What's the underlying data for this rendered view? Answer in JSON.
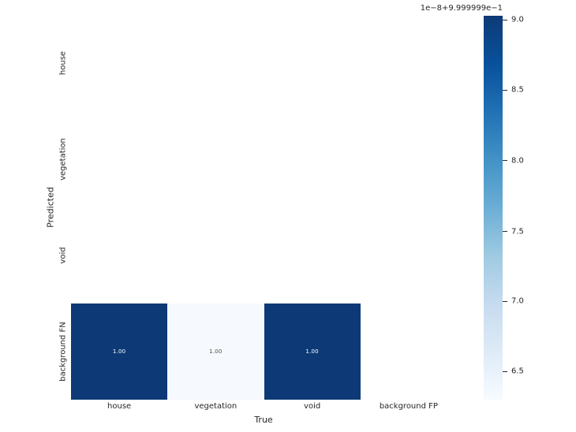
{
  "chart_data": {
    "type": "heatmap",
    "title": "",
    "xlabel": "True",
    "ylabel": "Predicted",
    "x_categories": [
      "house",
      "vegetation",
      "void",
      "background FP"
    ],
    "y_categories": [
      "house",
      "vegetation",
      "void",
      "background FN"
    ],
    "grid": "off",
    "cells": [
      {
        "row": 3,
        "col": 0,
        "value": "1.00",
        "bg": "#0d3a76",
        "fg": "#ffffff"
      },
      {
        "row": 3,
        "col": 1,
        "value": "1.00",
        "bg": "#f6f9fd",
        "fg": "#4d4d4d"
      },
      {
        "row": 3,
        "col": 2,
        "value": "1.00",
        "bg": "#0d3a76",
        "fg": "#ffffff"
      }
    ],
    "empty_cell_color": "#ffffff",
    "colorbar": {
      "position": "right",
      "offset_text": "1e−8+9.999999e−1",
      "ticks": [
        {
          "label": "9.0",
          "pos": 0.01
        },
        {
          "label": "8.5",
          "pos": 0.193
        },
        {
          "label": "8.0",
          "pos": 0.376
        },
        {
          "label": "7.5",
          "pos": 0.561
        },
        {
          "label": "7.0",
          "pos": 0.743
        },
        {
          "label": "6.5",
          "pos": 0.926
        }
      ],
      "gradient_top_to_bottom": [
        "#0d3a76",
        "#08519c",
        "#2171b5",
        "#4292c6",
        "#6baed6",
        "#9ecae1",
        "#c6dbef",
        "#deebf7",
        "#f7fbff"
      ]
    },
    "colors": {
      "text": "#262626",
      "background": "#ffffff",
      "cell_dark": "#0d3a76",
      "cell_light": "#f6f9fd"
    }
  }
}
